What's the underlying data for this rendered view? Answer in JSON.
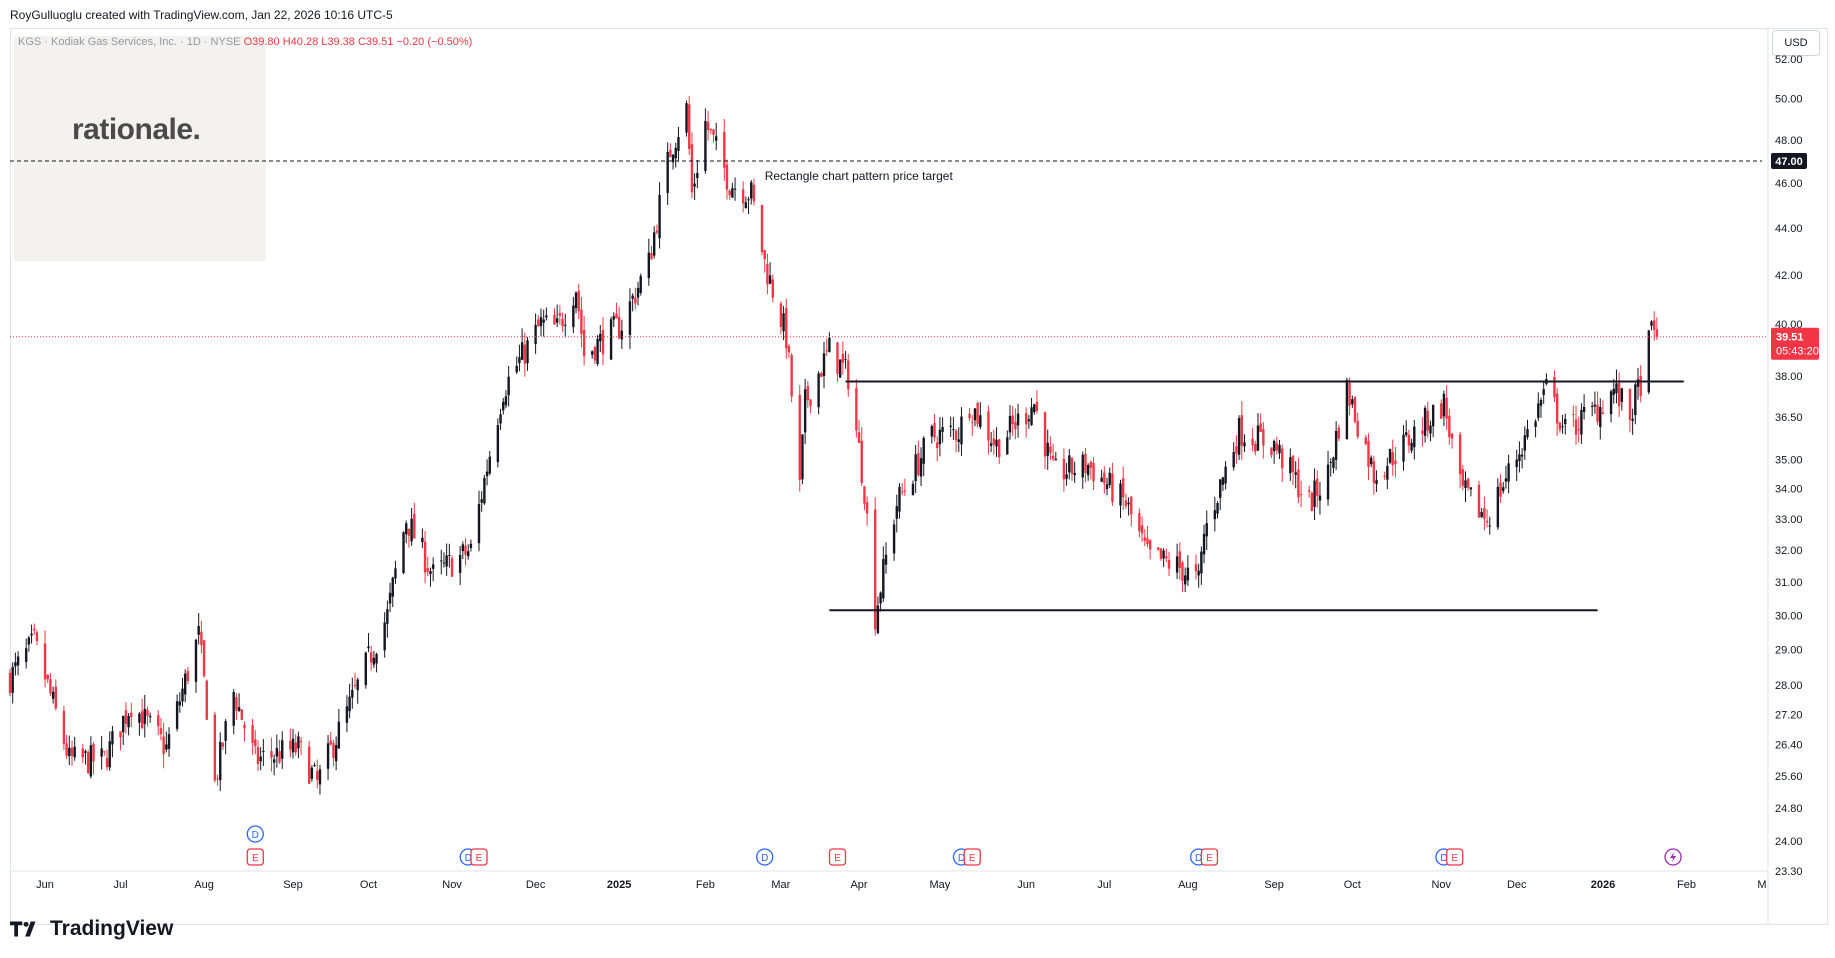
{
  "header": {
    "credit": "RoyGulluoglu created with TradingView.com, Jan 22, 2026 10:16 UTC-5"
  },
  "symbol": {
    "name": "KGS · Kodiak Gas Services, Inc. · 1D · NYSE",
    "ohlc": "O39.80 H40.28 L39.38 C39.51 −0.20 (−0.50%)"
  },
  "watermark": {
    "text": "rationale."
  },
  "currency": "USD",
  "footer": {
    "brand": "TradingView"
  },
  "colors": {
    "up": "#131722",
    "down": "#f23645",
    "price_line": "#f23645",
    "event_earnings": "#f23645",
    "event_dividend": "#2962ff",
    "event_split": "#9c27b0"
  },
  "chart_data": {
    "type": "candlestick",
    "scale": "log",
    "ylim": [
      23.3,
      53.5
    ],
    "y_ticks": [
      "23.30",
      "24.00",
      "24.80",
      "25.60",
      "26.40",
      "27.20",
      "28.00",
      "29.00",
      "30.00",
      "31.00",
      "32.00",
      "33.00",
      "34.00",
      "35.00",
      "36.50",
      "38.00",
      "40.00",
      "42.00",
      "44.00",
      "46.00",
      "48.00",
      "50.00",
      "52.00"
    ],
    "x_ticks": [
      "Jun",
      "Jul",
      "Aug",
      "Sep",
      "Oct",
      "Nov",
      "Dec",
      "2025",
      "Feb",
      "Mar",
      "Apr",
      "May",
      "Jun",
      "Jul",
      "Aug",
      "Sep",
      "Oct",
      "Nov",
      "Dec",
      "2026",
      "Feb",
      "M"
    ],
    "x_range": [
      "2024-05-21",
      "2026-03-02"
    ],
    "anchors": [
      [
        "2024-05-21",
        28.2
      ],
      [
        "2024-05-30",
        29.2
      ],
      [
        "2024-06-12",
        26.0
      ],
      [
        "2024-06-25",
        26.0
      ],
      [
        "2024-07-05",
        27.5
      ],
      [
        "2024-07-18",
        26.3
      ],
      [
        "2024-07-30",
        29.4
      ],
      [
        "2024-08-05",
        25.4
      ],
      [
        "2024-08-12",
        27.8
      ],
      [
        "2024-08-20",
        26.0
      ],
      [
        "2024-09-05",
        26.3
      ],
      [
        "2024-09-12",
        25.4
      ],
      [
        "2024-09-25",
        27.6
      ],
      [
        "2024-10-08",
        30.0
      ],
      [
        "2024-10-15",
        33.0
      ],
      [
        "2024-10-25",
        31.2
      ],
      [
        "2024-11-08",
        32.0
      ],
      [
        "2024-11-20",
        37.5
      ],
      [
        "2024-12-04",
        40.0
      ],
      [
        "2024-12-10",
        39.8
      ],
      [
        "2024-12-17",
        41.5
      ],
      [
        "2024-12-20",
        38.8
      ],
      [
        "2025-01-03",
        40.0
      ],
      [
        "2025-01-13",
        42.5
      ],
      [
        "2025-01-21",
        47.5
      ],
      [
        "2025-01-27",
        49.5
      ],
      [
        "2025-01-29",
        45.5
      ],
      [
        "2025-02-03",
        48.8
      ],
      [
        "2025-02-12",
        46.0
      ],
      [
        "2025-02-20",
        45.5
      ],
      [
        "2025-02-25",
        42.5
      ],
      [
        "2025-03-05",
        39.5
      ],
      [
        "2025-03-10",
        34.0
      ],
      [
        "2025-03-12",
        37.0
      ],
      [
        "2025-03-21",
        39.0
      ],
      [
        "2025-03-28",
        38.0
      ],
      [
        "2025-04-03",
        34.0
      ],
      [
        "2025-04-07",
        30.0
      ],
      [
        "2025-04-15",
        33.5
      ],
      [
        "2025-04-28",
        35.8
      ],
      [
        "2025-05-08",
        36.0
      ],
      [
        "2025-05-12",
        37.0
      ],
      [
        "2025-05-22",
        35.5
      ],
      [
        "2025-06-05",
        37.0
      ],
      [
        "2025-06-12",
        34.5
      ],
      [
        "2025-06-25",
        34.8
      ],
      [
        "2025-07-09",
        33.5
      ],
      [
        "2025-07-17",
        31.8
      ],
      [
        "2025-07-28",
        31.5
      ],
      [
        "2025-08-05",
        31.0
      ],
      [
        "2025-08-07",
        32.5
      ],
      [
        "2025-08-20",
        36.0
      ],
      [
        "2025-09-02",
        35.5
      ],
      [
        "2025-09-15",
        33.5
      ],
      [
        "2025-09-22",
        34.5
      ],
      [
        "2025-09-29",
        37.5
      ],
      [
        "2025-10-09",
        34.5
      ],
      [
        "2025-10-20",
        35.5
      ],
      [
        "2025-11-04",
        37.0
      ],
      [
        "2025-11-10",
        34.0
      ],
      [
        "2025-11-20",
        33.0
      ],
      [
        "2025-12-03",
        35.5
      ],
      [
        "2025-12-12",
        37.5
      ],
      [
        "2025-12-19",
        36.0
      ],
      [
        "2025-12-31",
        36.8
      ],
      [
        "2026-01-06",
        37.5
      ],
      [
        "2026-01-12",
        36.5
      ],
      [
        "2026-01-16",
        37.8
      ],
      [
        "2026-01-20",
        39.7
      ],
      [
        "2026-01-22",
        39.51
      ]
    ],
    "last_bar": {
      "open": 39.8,
      "high": 40.28,
      "low": 39.38,
      "close": 39.51
    },
    "current_price_label": "39.51",
    "countdown_label": "05:43:20",
    "target_price_label": "47.00",
    "horizontal_lines": [
      {
        "y": 47.0,
        "style": "dashed",
        "x_start": "2024-05-21",
        "x_end": "2026-03-02"
      },
      {
        "y": 37.8,
        "style": "solid",
        "x_start": "2025-03-27",
        "x_end": "2026-02-01"
      },
      {
        "y": 30.15,
        "style": "solid",
        "x_start": "2025-03-21",
        "x_end": "2025-12-31"
      }
    ],
    "annotations": [
      {
        "text": "Rectangle chart pattern price target",
        "x": "2025-02-25",
        "y": 46.3
      }
    ],
    "events": [
      {
        "type": "D",
        "date": "2024-08-20",
        "row": 1
      },
      {
        "type": "E",
        "date": "2024-08-20",
        "row": 2
      },
      {
        "type": "D",
        "date": "2024-11-07",
        "row": 2
      },
      {
        "type": "E",
        "date": "2024-11-11",
        "row": 2
      },
      {
        "type": "D",
        "date": "2025-02-25",
        "row": 2
      },
      {
        "type": "E",
        "date": "2025-03-24",
        "row": 2
      },
      {
        "type": "D",
        "date": "2025-05-09",
        "row": 2
      },
      {
        "type": "E",
        "date": "2025-05-13",
        "row": 2
      },
      {
        "type": "D",
        "date": "2025-08-05",
        "row": 2
      },
      {
        "type": "E",
        "date": "2025-08-09",
        "row": 2
      },
      {
        "type": "D",
        "date": "2025-11-04",
        "row": 2
      },
      {
        "type": "E",
        "date": "2025-11-08",
        "row": 2
      },
      {
        "type": "split",
        "date": "2026-01-28",
        "row": 2
      }
    ]
  }
}
